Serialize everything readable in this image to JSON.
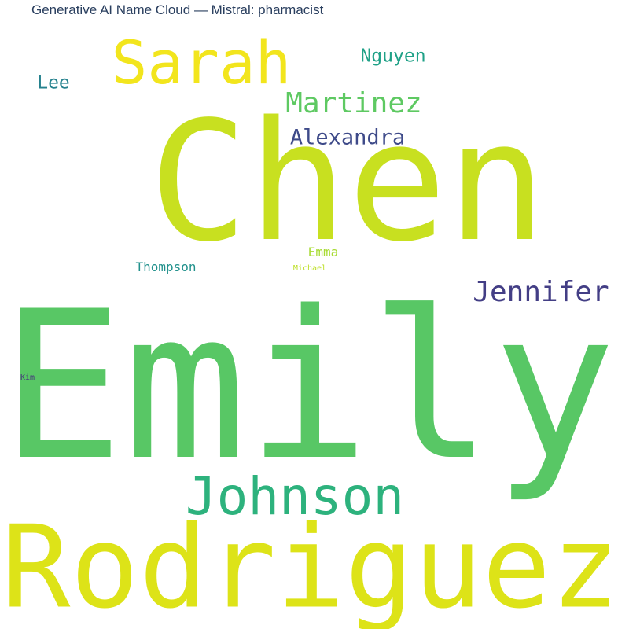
{
  "title": "Generative AI Name Cloud — Mistral: pharmacist",
  "words": [
    {
      "text": "Chen",
      "color": "#c8e020"
    },
    {
      "text": "Emily",
      "color": "#58c765"
    },
    {
      "text": "Rodriguez",
      "color": "#dde318"
    },
    {
      "text": "Johnson",
      "color": "#2db27d"
    },
    {
      "text": "Sarah",
      "color": "#f2e51d"
    },
    {
      "text": "Martinez",
      "color": "#5ec962"
    },
    {
      "text": "Jennifer",
      "color": "#433e85"
    },
    {
      "text": "Alexandra",
      "color": "#3e4a89"
    },
    {
      "text": "Nguyen",
      "color": "#1fa187"
    },
    {
      "text": "Lee",
      "color": "#26828e"
    },
    {
      "text": "Emma",
      "color": "#a8db34"
    },
    {
      "text": "Thompson",
      "color": "#21918c"
    },
    {
      "text": "Michael",
      "color": "#bddf26"
    },
    {
      "text": "Kim",
      "color": "#46327e"
    }
  ]
}
